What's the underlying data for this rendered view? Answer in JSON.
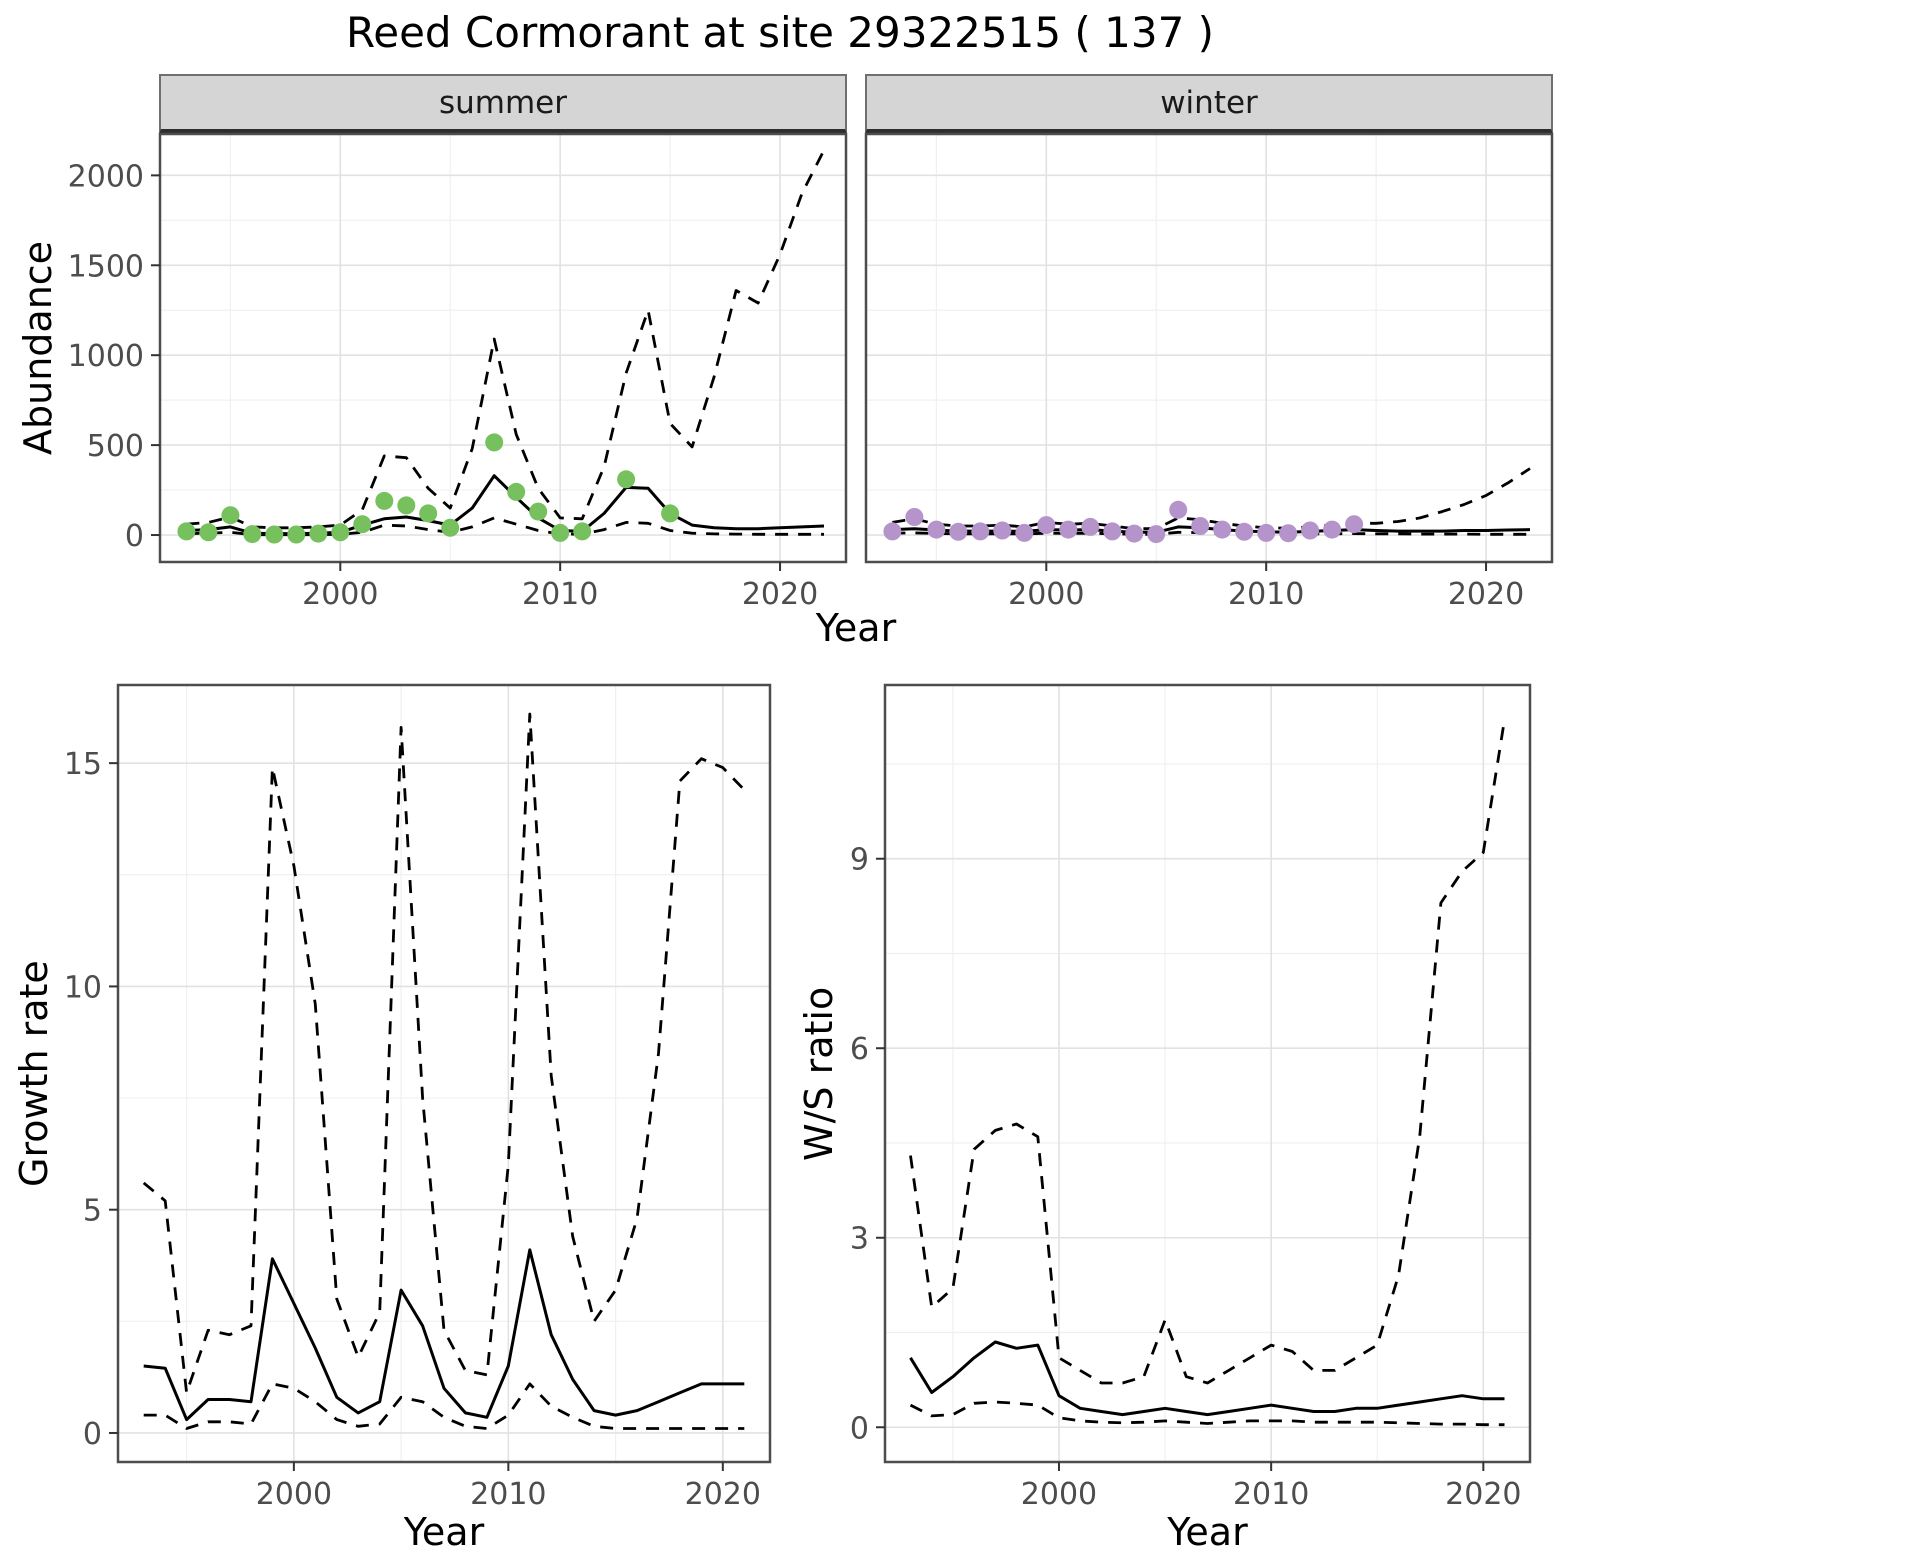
{
  "title": "Reed Cormorant at site 29322515 ( 137 )",
  "colors": {
    "summer_point": "#76c05e",
    "winter_point": "#b593cb",
    "fit_line": "#000000",
    "strip_bg": "#d5d5d5",
    "grid_major": "#e2e2e2",
    "grid_minor": "#f0f0f0",
    "panel_border": "#4d4d4d",
    "tick_text": "#4d4d4d"
  },
  "chart_data": [
    {
      "id": "abundance_summer",
      "type": "line",
      "facet": "summer",
      "xlabel": "Year",
      "ylabel": "Abundance",
      "xlim": [
        1991.8,
        2023.0
      ],
      "ylim": [
        -150,
        2230
      ],
      "xticks": [
        2000,
        2010,
        2020
      ],
      "yticks": [
        0,
        500,
        1000,
        1500,
        2000
      ],
      "x": [
        1993,
        1994,
        1995,
        1996,
        1997,
        1998,
        1999,
        2000,
        2001,
        2002,
        2003,
        2004,
        2005,
        2006,
        2007,
        2008,
        2009,
        2010,
        2011,
        2012,
        2013,
        2014,
        2015,
        2016,
        2017,
        2018,
        2019,
        2020,
        2021,
        2022
      ],
      "series": [
        {
          "name": "median",
          "style": "solid",
          "values": [
            25,
            30,
            45,
            10,
            8,
            8,
            10,
            15,
            55,
            90,
            100,
            80,
            55,
            150,
            330,
            210,
            95,
            25,
            20,
            120,
            265,
            260,
            120,
            55,
            40,
            35,
            35,
            40,
            45,
            50
          ]
        },
        {
          "name": "upper_ci",
          "style": "dashed",
          "values": [
            60,
            70,
            100,
            45,
            40,
            40,
            45,
            55,
            140,
            440,
            430,
            260,
            150,
            480,
            1090,
            560,
            260,
            95,
            90,
            380,
            900,
            1250,
            620,
            490,
            880,
            1360,
            1290,
            1560,
            1900,
            2140
          ]
        },
        {
          "name": "lower_ci",
          "style": "dashed",
          "values": [
            8,
            10,
            15,
            2,
            2,
            2,
            2,
            4,
            15,
            55,
            50,
            30,
            15,
            45,
            95,
            60,
            25,
            5,
            5,
            30,
            70,
            65,
            25,
            10,
            6,
            5,
            4,
            4,
            4,
            4
          ]
        },
        {
          "name": "observed",
          "style": "points",
          "color": "#76c05e",
          "x": [
            1993,
            1994,
            1995,
            1996,
            1997,
            1998,
            1999,
            2000,
            2001,
            2002,
            2003,
            2004,
            2005,
            2007,
            2008,
            2009,
            2010,
            2011,
            2013,
            2015
          ],
          "values": [
            20,
            15,
            110,
            5,
            3,
            3,
            8,
            15,
            60,
            190,
            165,
            120,
            40,
            515,
            240,
            130,
            12,
            20,
            310,
            120
          ]
        }
      ]
    },
    {
      "id": "abundance_winter",
      "type": "line",
      "facet": "winter",
      "xlabel": "Year",
      "ylabel": "Abundance",
      "xlim": [
        1991.8,
        2023.0
      ],
      "ylim": [
        -150,
        2230
      ],
      "xticks": [
        2000,
        2010,
        2020
      ],
      "yticks": [
        0,
        500,
        1000,
        1500,
        2000
      ],
      "x": [
        1993,
        1994,
        1995,
        1996,
        1997,
        1998,
        1999,
        2000,
        2001,
        2002,
        2003,
        2004,
        2005,
        2006,
        2007,
        2008,
        2009,
        2010,
        2011,
        2012,
        2013,
        2014,
        2015,
        2016,
        2017,
        2018,
        2019,
        2020,
        2021,
        2022
      ],
      "series": [
        {
          "name": "median",
          "style": "solid",
          "values": [
            30,
            35,
            28,
            22,
            22,
            22,
            20,
            30,
            28,
            30,
            22,
            15,
            15,
            45,
            40,
            30,
            22,
            18,
            15,
            20,
            25,
            30,
            25,
            22,
            22,
            22,
            25,
            25,
            28,
            30
          ]
        },
        {
          "name": "upper_ci",
          "style": "dashed",
          "values": [
            70,
            90,
            60,
            50,
            50,
            55,
            45,
            70,
            60,
            65,
            50,
            35,
            35,
            95,
            85,
            65,
            50,
            40,
            38,
            45,
            55,
            65,
            65,
            75,
            95,
            130,
            170,
            220,
            290,
            370
          ]
        },
        {
          "name": "lower_ci",
          "style": "dashed",
          "values": [
            10,
            12,
            9,
            7,
            7,
            7,
            6,
            10,
            9,
            10,
            7,
            4,
            4,
            15,
            13,
            9,
            7,
            5,
            4,
            6,
            7,
            8,
            7,
            6,
            5,
            5,
            5,
            4,
            4,
            4
          ]
        },
        {
          "name": "observed",
          "style": "points",
          "color": "#b593cb",
          "x": [
            1993,
            1994,
            1995,
            1996,
            1997,
            1998,
            1999,
            2000,
            2001,
            2002,
            2003,
            2004,
            2005,
            2006,
            2007,
            2008,
            2009,
            2010,
            2011,
            2012,
            2013,
            2014
          ],
          "values": [
            20,
            100,
            30,
            18,
            20,
            25,
            12,
            55,
            30,
            45,
            20,
            8,
            5,
            140,
            50,
            30,
            18,
            12,
            10,
            25,
            30,
            60
          ]
        }
      ]
    },
    {
      "id": "growth_rate",
      "type": "line",
      "facet": null,
      "xlabel": "Year",
      "ylabel": "Growth rate",
      "xlim": [
        1991.8,
        2022.2
      ],
      "ylim": [
        -0.65,
        16.75
      ],
      "xticks": [
        2000,
        2010,
        2020
      ],
      "yticks": [
        0,
        5,
        10,
        15
      ],
      "x": [
        1993,
        1994,
        1995,
        1996,
        1997,
        1998,
        1999,
        2000,
        2001,
        2002,
        2003,
        2004,
        2005,
        2006,
        2007,
        2008,
        2009,
        2010,
        2011,
        2012,
        2013,
        2014,
        2015,
        2016,
        2017,
        2018,
        2019,
        2020,
        2021
      ],
      "series": [
        {
          "name": "median",
          "style": "solid",
          "values": [
            1.5,
            1.45,
            0.3,
            0.75,
            0.75,
            0.7,
            3.9,
            2.9,
            1.9,
            0.8,
            0.45,
            0.7,
            3.2,
            2.4,
            1.0,
            0.45,
            0.35,
            1.5,
            4.1,
            2.2,
            1.2,
            0.5,
            0.4,
            0.5,
            0.7,
            0.9,
            1.1,
            1.1,
            1.1
          ]
        },
        {
          "name": "upper_ci",
          "style": "dashed",
          "values": [
            5.6,
            5.2,
            0.9,
            2.3,
            2.2,
            2.4,
            14.9,
            12.7,
            9.6,
            3.0,
            1.7,
            2.7,
            15.8,
            7.5,
            2.3,
            1.4,
            1.3,
            6.0,
            16.1,
            8.0,
            4.4,
            2.5,
            3.2,
            4.8,
            8.5,
            14.6,
            15.1,
            14.9,
            14.4
          ]
        },
        {
          "name": "lower_ci",
          "style": "dashed",
          "values": [
            0.4,
            0.4,
            0.1,
            0.25,
            0.25,
            0.2,
            1.1,
            1.0,
            0.7,
            0.3,
            0.15,
            0.2,
            0.8,
            0.7,
            0.35,
            0.15,
            0.1,
            0.4,
            1.1,
            0.6,
            0.35,
            0.15,
            0.1,
            0.1,
            0.1,
            0.1,
            0.1,
            0.1,
            0.1
          ]
        }
      ]
    },
    {
      "id": "ws_ratio",
      "type": "line",
      "facet": null,
      "xlabel": "Year",
      "ylabel": "W/S ratio",
      "xlim": [
        1991.8,
        2022.2
      ],
      "ylim": [
        -0.55,
        11.75
      ],
      "xticks": [
        2000,
        2010,
        2020
      ],
      "yticks": [
        0,
        3,
        6,
        9
      ],
      "x": [
        1993,
        1994,
        1995,
        1996,
        1997,
        1998,
        1999,
        2000,
        2001,
        2002,
        2003,
        2004,
        2005,
        2006,
        2007,
        2008,
        2009,
        2010,
        2011,
        2012,
        2013,
        2014,
        2015,
        2016,
        2017,
        2018,
        2019,
        2020,
        2021
      ],
      "series": [
        {
          "name": "median",
          "style": "solid",
          "values": [
            1.1,
            0.55,
            0.8,
            1.1,
            1.35,
            1.25,
            1.3,
            0.5,
            0.3,
            0.25,
            0.2,
            0.25,
            0.3,
            0.25,
            0.2,
            0.25,
            0.3,
            0.35,
            0.3,
            0.25,
            0.25,
            0.3,
            0.3,
            0.35,
            0.4,
            0.45,
            0.5,
            0.45,
            0.45
          ]
        },
        {
          "name": "upper_ci",
          "style": "dashed",
          "values": [
            4.3,
            1.9,
            2.2,
            4.4,
            4.7,
            4.8,
            4.6,
            1.1,
            0.9,
            0.7,
            0.7,
            0.8,
            1.7,
            0.8,
            0.7,
            0.9,
            1.1,
            1.3,
            1.2,
            0.9,
            0.9,
            1.1,
            1.3,
            2.4,
            4.6,
            8.3,
            8.8,
            9.1,
            11.2
          ]
        },
        {
          "name": "lower_ci",
          "style": "dashed",
          "values": [
            0.35,
            0.18,
            0.2,
            0.38,
            0.4,
            0.38,
            0.35,
            0.15,
            0.1,
            0.08,
            0.07,
            0.08,
            0.1,
            0.08,
            0.06,
            0.08,
            0.1,
            0.1,
            0.1,
            0.08,
            0.08,
            0.08,
            0.08,
            0.07,
            0.06,
            0.05,
            0.05,
            0.04,
            0.04
          ]
        }
      ]
    }
  ]
}
